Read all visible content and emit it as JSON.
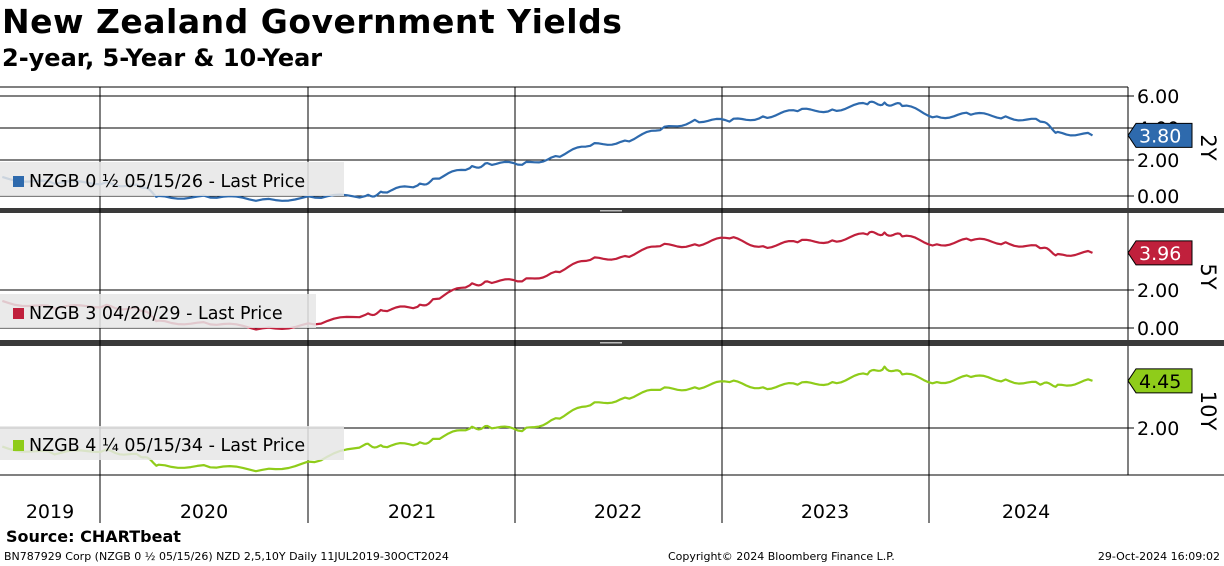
{
  "title": "New Zealand Government Yields",
  "subtitle": "2-year, 5-Year & 10-Year",
  "footer": {
    "source": "Source: CHARTbeat",
    "left": "BN787929 Corp (NZGB 0 ½ 05/15/26) NZD 2,5,10Y  Daily 11JUL2019-30OCT2024",
    "middle": "Copyright© 2024 Bloomberg Finance L.P.",
    "right": "29-Oct-2024 16:09:02"
  },
  "colors": {
    "y2": "#2e6aad",
    "y5": "#c0203c",
    "y10": "#8fcc1a"
  },
  "chart_data": {
    "type": "line",
    "x_labels": [
      "2019",
      "2020",
      "2021",
      "2022",
      "2023",
      "2024"
    ],
    "x_range": [
      "2019-07-11",
      "2024-10-30"
    ],
    "panels": [
      {
        "key": "y2",
        "axis_label": "2Y",
        "legend": "NZGB 0 ½ 05/15/26 - Last Price",
        "last_value": "3.80",
        "ylim": [
          -0.4,
          6.6
        ],
        "ticks": [
          "6.00",
          "4.00",
          "2.00",
          "0.00"
        ],
        "series": {
          "x": [
            "2019-07",
            "2019-10",
            "2020-01",
            "2020-03",
            "2020-04",
            "2020-07",
            "2020-10",
            "2021-01",
            "2021-04",
            "2021-05",
            "2021-07",
            "2021-08",
            "2021-10",
            "2021-11",
            "2022-01",
            "2022-03",
            "2022-05",
            "2022-07",
            "2022-09",
            "2022-11",
            "2023-01",
            "2023-03",
            "2023-05",
            "2023-07",
            "2023-09",
            "2023-10",
            "2023-11",
            "2024-01",
            "2024-03",
            "2024-05",
            "2024-07",
            "2024-08",
            "2024-10"
          ],
          "y": [
            1.4,
            1.0,
            1.1,
            0.8,
            0.3,
            0.2,
            0.1,
            0.2,
            0.3,
            0.5,
            0.9,
            1.3,
            1.9,
            2.2,
            2.1,
            2.6,
            3.2,
            3.5,
            4.1,
            4.7,
            4.6,
            4.9,
            5.2,
            5.3,
            5.6,
            5.7,
            5.5,
            4.9,
            5.0,
            4.9,
            4.6,
            4.0,
            3.8
          ]
        }
      },
      {
        "key": "y5",
        "axis_label": "5Y",
        "legend": "NZGB 3 04/20/29 - Last Price",
        "last_value": "3.96",
        "ylim": [
          -0.5,
          6.0
        ],
        "ticks": [
          "2.00",
          "0.00"
        ],
        "series": {
          "x": [
            "2019-07",
            "2019-10",
            "2020-01",
            "2020-03",
            "2020-04",
            "2020-07",
            "2020-10",
            "2021-01",
            "2021-04",
            "2021-05",
            "2021-07",
            "2021-08",
            "2021-10",
            "2021-11",
            "2022-01",
            "2022-03",
            "2022-05",
            "2022-07",
            "2022-09",
            "2022-11",
            "2023-01",
            "2023-03",
            "2023-05",
            "2023-07",
            "2023-09",
            "2023-10",
            "2023-11",
            "2024-01",
            "2024-03",
            "2024-05",
            "2024-07",
            "2024-08",
            "2024-10"
          ],
          "y": [
            1.5,
            1.1,
            1.3,
            1.0,
            0.5,
            0.3,
            0.1,
            0.3,
            0.8,
            1.0,
            1.2,
            1.6,
            2.3,
            2.5,
            2.5,
            3.0,
            3.6,
            3.8,
            4.3,
            4.4,
            4.7,
            4.3,
            4.5,
            4.6,
            4.9,
            5.0,
            4.8,
            4.4,
            4.6,
            4.5,
            4.2,
            3.9,
            3.96
          ]
        }
      },
      {
        "key": "y10",
        "axis_label": "10Y",
        "legend": "NZGB 4 ¼ 05/15/34 - Last Price",
        "last_value": "4.45",
        "ylim": [
          0.8,
          5.8
        ],
        "ticks": [
          "2.00"
        ],
        "series": {
          "x": [
            "2019-07",
            "2019-10",
            "2020-01",
            "2020-03",
            "2020-04",
            "2020-07",
            "2020-10",
            "2021-01",
            "2021-04",
            "2021-05",
            "2021-07",
            "2021-08",
            "2021-10",
            "2021-11",
            "2022-01",
            "2022-03",
            "2022-05",
            "2022-07",
            "2022-09",
            "2022-11",
            "2023-01",
            "2023-03",
            "2023-05",
            "2023-07",
            "2023-09",
            "2023-10",
            "2023-11",
            "2024-01",
            "2024-03",
            "2024-05",
            "2024-07",
            "2024-08",
            "2024-10"
          ],
          "y": [
            1.9,
            1.6,
            1.8,
            1.5,
            1.2,
            1.1,
            1.0,
            1.3,
            2.0,
            1.9,
            2.0,
            2.2,
            2.6,
            2.7,
            2.5,
            3.0,
            3.5,
            3.8,
            4.1,
            4.2,
            4.4,
            4.2,
            4.3,
            4.4,
            4.7,
            5.0,
            4.7,
            4.4,
            4.6,
            4.5,
            4.3,
            4.3,
            4.45
          ]
        }
      }
    ]
  }
}
